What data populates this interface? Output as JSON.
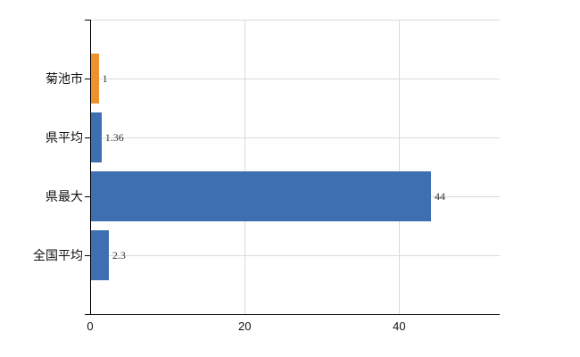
{
  "chart_data": {
    "type": "bar",
    "orientation": "horizontal",
    "title": "",
    "xlabel": "",
    "ylabel": "",
    "categories": [
      "菊池市",
      "県平均",
      "県最大",
      "全国平均"
    ],
    "values": [
      1,
      1.36,
      44,
      2.3
    ],
    "value_labels": [
      "1",
      "1.36",
      "44",
      "2.3"
    ],
    "bar_colors": [
      "#EE9231",
      "#3E6FB0",
      "#3E6FB0",
      "#3E6FB0"
    ],
    "x_ticks": [
      0,
      20,
      40
    ],
    "x_tick_labels": [
      "0",
      "20",
      "40"
    ],
    "xlim": [
      0,
      53
    ],
    "grid": true,
    "legend": false
  },
  "colors": {
    "highlight_bar": "#EE9231",
    "default_bar": "#3E6FB0",
    "gridline": "#D8DCD8",
    "axis": "#000000",
    "value_text": "#333333",
    "label_text": "#111111",
    "background": "#FFFFFF"
  }
}
